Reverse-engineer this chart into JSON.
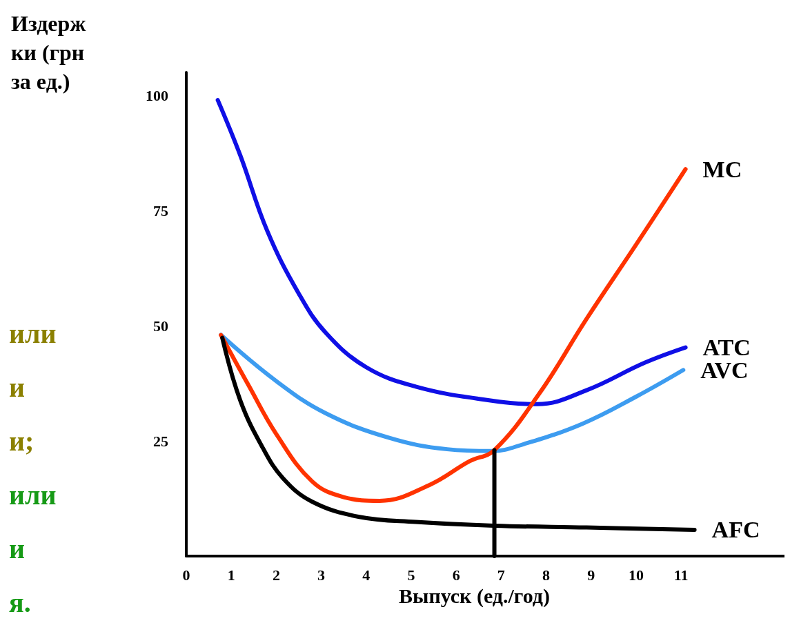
{
  "chart_data": {
    "type": "line",
    "xlabel": "Выпуск (ед./год)",
    "ylabel": "Издержки (грн за ед.)",
    "xlim": [
      0,
      13.3
    ],
    "ylim": [
      0,
      105
    ],
    "xticks": [
      0,
      1,
      2,
      3,
      4,
      5,
      6,
      7,
      8,
      9,
      10,
      11
    ],
    "yticks": [
      25,
      50,
      75,
      100
    ],
    "grid": false,
    "legend": false,
    "marker": "none",
    "line_style": "solid",
    "annotations": [
      "или",
      "и",
      "и;",
      "или",
      "и",
      "я."
    ],
    "series": [
      {
        "name": "ATC",
        "color": "#0f0fe6",
        "x": [
          0.7,
          1.2,
          1.8,
          2.5,
          3.1,
          4,
          5.1,
          6.6,
          7.8,
          8.9,
          10.2,
          11.1
        ],
        "values": [
          99,
          87,
          70.6,
          57,
          48.5,
          41,
          36.8,
          34,
          33,
          36,
          42,
          45.3
        ]
      },
      {
        "name": "AVC",
        "color": "#3d9cf0",
        "x": [
          0.77,
          2,
          3.1,
          4.5,
          5.8,
          6.8,
          7.5,
          8.8,
          10,
          11.05
        ],
        "values": [
          48,
          38,
          31,
          25.7,
          23.2,
          22.8,
          24.3,
          28.7,
          34.6,
          40.4
        ]
      },
      {
        "name": "MC",
        "color": "#ff3300",
        "x": [
          0.77,
          1.4,
          2,
          2.8,
          3.5,
          4.3,
          5.4,
          6.3,
          6.85,
          7.85,
          8.9,
          10,
          11.1
        ],
        "values": [
          48,
          36.8,
          26.5,
          16.2,
          12.8,
          12,
          15.4,
          20.6,
          23,
          35.3,
          51.5,
          67.6,
          84
        ]
      },
      {
        "name": "AFC",
        "color": "#000000",
        "x": [
          0.8,
          1.2,
          1.7,
          2.15,
          2.8,
          3.85,
          5.1,
          6.85,
          8.9,
          11.3
        ],
        "values": [
          47.4,
          33.8,
          23.5,
          16.9,
          11.8,
          8.5,
          7.4,
          6.6,
          6.2,
          5.7
        ]
      },
      {
        "color": "#000000",
        "x": [
          6.85,
          6.85
        ],
        "values": [
          0,
          23
        ]
      }
    ]
  }
}
